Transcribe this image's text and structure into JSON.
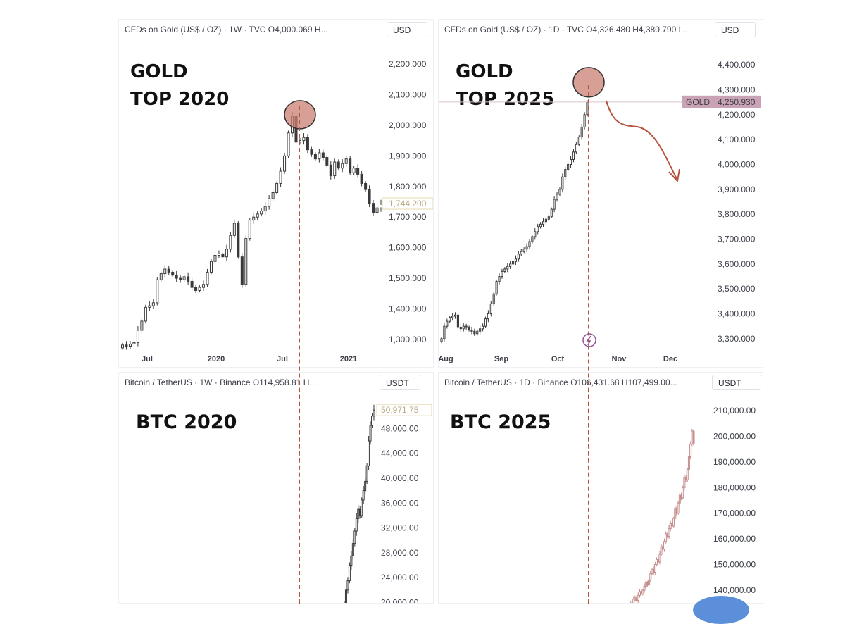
{
  "panels": {
    "gold_2020": {
      "header": "CFDs on Gold (US$ / OZ) · 1W · TVC  O4,000.069  H...",
      "currency": "USD",
      "label_line1": "GOLD",
      "label_line2": "TOP 2020",
      "last_price": "1,744.200"
    },
    "gold_2025": {
      "header": "CFDs on Gold (US$ / OZ) · 1D · TVC  O4,326.480  H4,380.790  L...",
      "currency": "USD",
      "label_line1": "GOLD",
      "label_line2": "TOP 2025",
      "price_tag_name": "GOLD",
      "price_tag_value": "4,250.930"
    },
    "btc_2020": {
      "header": "Bitcoin / TetherUS · 1W · Binance  O114,958.81  H...",
      "currency": "USDT",
      "label": "BTC 2020",
      "last_price": "50,971.75"
    },
    "btc_2025": {
      "header": "Bitcoin / TetherUS · 1D · Binance  O106,431.68  H107,499.00...",
      "currency": "USDT",
      "label": "BTC 2025"
    }
  },
  "colors": {
    "candle_dark": "#3a3a3a",
    "candle_pink": "#c58d8d",
    "marker": "#b5543f",
    "marker_fill": "#c97f73",
    "price_tag": "#c9a3b5"
  },
  "chart_data": [
    {
      "type": "candlestick",
      "series": [
        {
          "name": "CFDs on Gold (US$ / OZ)",
          "interval": "1W"
        }
      ],
      "x_ticks": [
        "Jul",
        "2020",
        "Jul",
        "2021"
      ],
      "y_ticks": [
        "2,200.000",
        "2,100.000",
        "2,000.000",
        "1,900.000",
        "1,800.000",
        "1,700.000",
        "1,600.000",
        "1,500.000",
        "1,400.000",
        "1,300.000"
      ],
      "ylim": [
        1270,
        2230
      ],
      "closes": [
        1282,
        1278,
        1285,
        1290,
        1330,
        1360,
        1405,
        1410,
        1420,
        1495,
        1515,
        1530,
        1520,
        1510,
        1500,
        1495,
        1505,
        1490,
        1470,
        1460,
        1470,
        1480,
        1520,
        1555,
        1575,
        1580,
        1570,
        1595,
        1640,
        1680,
        1570,
        1480,
        1630,
        1690,
        1700,
        1710,
        1720,
        1735,
        1760,
        1780,
        1810,
        1850,
        1900,
        1975,
        2030,
        1945,
        1950,
        1960,
        1920,
        1905,
        1890,
        1910,
        1895,
        1870,
        1835,
        1880,
        1860,
        1875,
        1890,
        1845,
        1860,
        1840,
        1810,
        1790,
        1745,
        1715,
        1730,
        1742
      ],
      "last_price": 1744.2,
      "annotations": [
        {
          "text": "GOLD"
        },
        {
          "text": "TOP 2020"
        },
        {
          "shape": "circle",
          "at_value": 2030
        }
      ]
    },
    {
      "type": "candlestick",
      "series": [
        {
          "name": "CFDs on Gold (US$ / OZ)",
          "interval": "1D"
        }
      ],
      "x_ticks": [
        "Aug",
        "Sep",
        "Oct",
        "Nov",
        "Dec"
      ],
      "y_ticks": [
        "4,400.000",
        "4,300.000",
        "4,200.000",
        "4,100.000",
        "4,000.000",
        "3,900.000",
        "3,800.000",
        "3,700.000",
        "3,600.000",
        "3,500.000",
        "3,400.000",
        "3,300.000"
      ],
      "ylim": [
        3260,
        4440
      ],
      "closes": [
        3300,
        3350,
        3370,
        3385,
        3390,
        3395,
        3345,
        3340,
        3350,
        3345,
        3335,
        3330,
        3320,
        3330,
        3340,
        3350,
        3380,
        3400,
        3440,
        3480,
        3530,
        3550,
        3570,
        3580,
        3590,
        3600,
        3610,
        3620,
        3640,
        3650,
        3660,
        3670,
        3690,
        3710,
        3730,
        3750,
        3760,
        3770,
        3780,
        3790,
        3820,
        3860,
        3880,
        3900,
        3950,
        3980,
        4000,
        4020,
        4050,
        4080,
        4110,
        4150,
        4200,
        4250
      ],
      "last_price": 4250.93,
      "annotations": [
        {
          "text": "GOLD"
        },
        {
          "text": "TOP 2025"
        },
        {
          "shape": "circle",
          "at_value": 4330
        },
        {
          "shape": "arrow",
          "direction": "down"
        }
      ]
    },
    {
      "type": "candlestick",
      "series": [
        {
          "name": "Bitcoin / TetherUS",
          "interval": "1W"
        }
      ],
      "y_ticks": [
        "48,000.00",
        "44,000.00",
        "40,000.00",
        "36,000.00",
        "32,000.00",
        "28,000.00",
        "24,000.00",
        "20,000.00"
      ],
      "ylim": [
        19600,
        53600
      ],
      "closes": [
        19800,
        22000,
        23500,
        26000,
        27500,
        29500,
        31500,
        33500,
        35000,
        34000,
        36500,
        38000,
        39500,
        42000,
        46000,
        48500,
        50000,
        50971.75
      ],
      "last_price": 50971.75,
      "annotations": [
        {
          "text": "BTC 2020"
        }
      ]
    },
    {
      "type": "candlestick",
      "series": [
        {
          "name": "Bitcoin / TetherUS",
          "interval": "1D"
        }
      ],
      "y_ticks": [
        "210,000.00",
        "200,000.00",
        "190,000.00",
        "180,000.00",
        "170,000.00",
        "160,000.00",
        "150,000.00",
        "140,000.00"
      ],
      "ylim": [
        131500,
        213000
      ],
      "closes": [
        132000,
        133500,
        135000,
        134000,
        136500,
        137000,
        136000,
        138000,
        139500,
        138500,
        140000,
        141500,
        143000,
        142000,
        144000,
        146500,
        148000,
        147000,
        150000,
        152000,
        151000,
        154000,
        157000,
        156000,
        159000,
        162000,
        161000,
        164000,
        166000,
        165000,
        168000,
        172000,
        170000,
        174000,
        177000,
        176000,
        180000,
        184000,
        183000,
        187000,
        192000,
        197000,
        202000,
        197000
      ],
      "annotations": [
        {
          "text": "BTC 2025"
        }
      ]
    }
  ]
}
